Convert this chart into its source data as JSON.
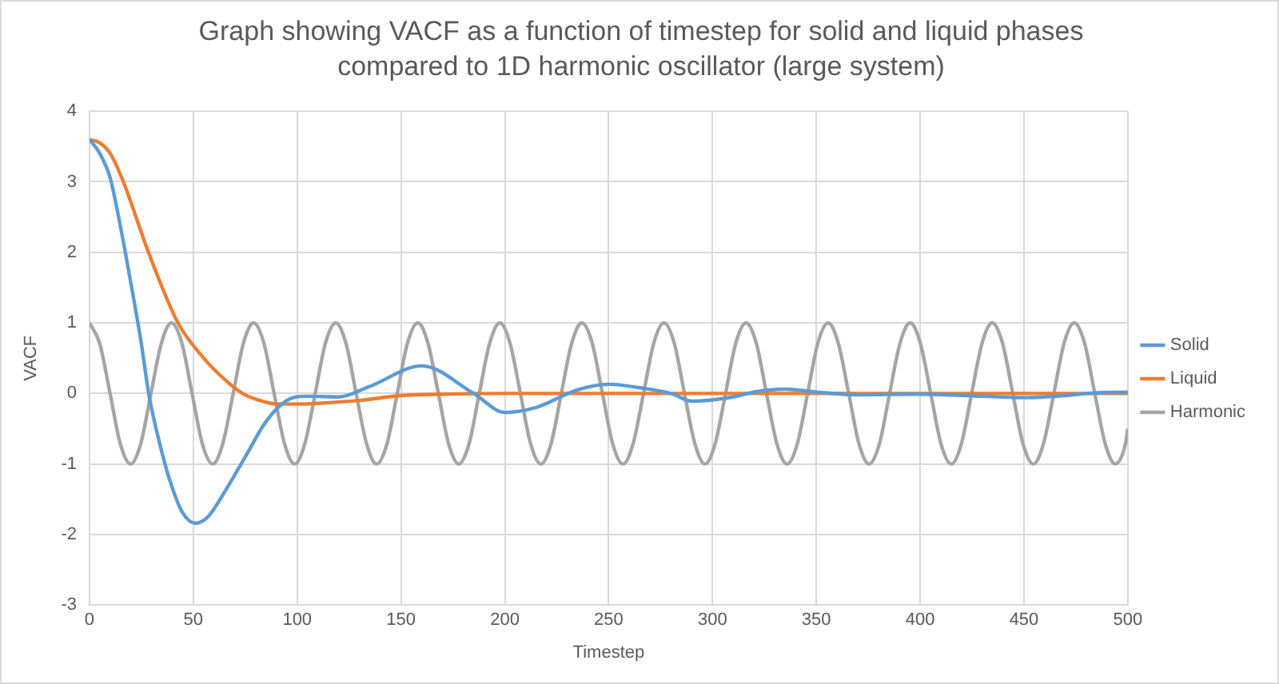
{
  "chart_data": {
    "type": "line",
    "title": "Graph showing VACF as a function of timestep for solid and liquid phases compared to 1D harmonic oscillator (large system)",
    "xlabel": "Timestep",
    "ylabel": "VACF",
    "xlim": [
      0,
      500
    ],
    "xticks": [
      0,
      50,
      100,
      150,
      200,
      250,
      300,
      350,
      400,
      450,
      500
    ],
    "ylim": [
      -3,
      4
    ],
    "yticks": [
      -3,
      -2,
      -1,
      0,
      1,
      2,
      3,
      4
    ],
    "grid": true,
    "legend": "right",
    "marker": "none",
    "line_style": "solid",
    "series": [
      {
        "name": "Solid",
        "color": "#5b9bd5",
        "x": [
          0,
          5,
          10,
          15,
          20,
          25,
          28.5,
          35,
          40,
          45,
          51,
          57,
          65,
          75,
          85,
          95,
          105,
          120,
          135,
          160,
          185,
          200,
          215,
          235,
          250,
          265,
          280,
          290,
          310,
          320,
          335,
          350,
          370,
          400,
          430,
          450,
          470,
          480,
          500
        ],
        "values": [
          3.6,
          3.4,
          3.05,
          2.35,
          1.55,
          0.7,
          0,
          -0.85,
          -1.35,
          -1.7,
          -1.84,
          -1.75,
          -1.4,
          -0.9,
          -0.4,
          -0.1,
          -0.04,
          -0.05,
          0.1,
          0.39,
          0,
          -0.27,
          -0.2,
          0.05,
          0.13,
          0.08,
          0,
          -0.11,
          -0.05,
          0.02,
          0.06,
          0.02,
          -0.02,
          -0.01,
          -0.04,
          -0.06,
          -0.03,
          0,
          0.02
        ]
      },
      {
        "name": "Liquid",
        "color": "#ed7d31",
        "x": [
          0,
          5,
          10,
          16.3,
          28.4,
          42.6,
          55,
          65,
          73.7,
          82,
          90,
          100,
          110,
          130,
          150,
          170,
          200,
          300,
          400,
          500
        ],
        "values": [
          3.6,
          3.55,
          3.4,
          3,
          2,
          1,
          0.5,
          0.2,
          0,
          -0.1,
          -0.15,
          -0.15,
          -0.14,
          -0.1,
          -0.03,
          -0.01,
          0,
          0,
          0,
          0
        ]
      },
      {
        "name": "Harmonic",
        "color": "#a5a5a5",
        "x": [
          0,
          4.9,
          9.9,
          14.8,
          19.8,
          24.7,
          29.6,
          34.6,
          39.5,
          44.5,
          49.4,
          54.3,
          59.3,
          64.2,
          69.2,
          74.1,
          79,
          84,
          88.9,
          93.9,
          98.8,
          103.7,
          108.7,
          113.6,
          118.6,
          123.5,
          128.4,
          133.4,
          138.3,
          143.3,
          148.2,
          153.1,
          158.1,
          163,
          168,
          172.9,
          177.8,
          182.8,
          187.7,
          192.7,
          197.6,
          202.5,
          207.5,
          212.4,
          217.4,
          222.3,
          227.2,
          232.2,
          237.1,
          242.1,
          247,
          251.9,
          256.9,
          261.8,
          266.8,
          271.7,
          276.6,
          281.6,
          286.5,
          291.5,
          296.4,
          301.3,
          306.3,
          311.2,
          316.2,
          321.1,
          326,
          331,
          335.9,
          340.9,
          345.8,
          350.7,
          355.7,
          360.6,
          365.6,
          370.5,
          375.4,
          380.4,
          385.3,
          390.3,
          395.2,
          400.1,
          405.1,
          410,
          415,
          419.9,
          424.8,
          429.8,
          434.7,
          439.7,
          444.6,
          449.5,
          454.5,
          459.4,
          464.4,
          469.3,
          474.2,
          479.2,
          484.1,
          489.1,
          494,
          498.9,
          500
        ],
        "values": [
          1,
          0.71,
          0,
          -0.71,
          -1,
          -0.71,
          0,
          0.71,
          1,
          0.71,
          0,
          -0.71,
          -1,
          -0.71,
          0,
          0.71,
          1,
          0.71,
          0,
          -0.71,
          -1,
          -0.71,
          0,
          0.71,
          1,
          0.71,
          0,
          -0.71,
          -1,
          -0.71,
          0,
          0.71,
          1,
          0.71,
          0,
          -0.71,
          -1,
          -0.71,
          0,
          0.71,
          1,
          0.71,
          0,
          -0.71,
          -1,
          -0.71,
          0,
          0.71,
          1,
          0.71,
          0,
          -0.71,
          -1,
          -0.71,
          0,
          0.71,
          1,
          0.71,
          0,
          -0.71,
          -1,
          -0.71,
          0,
          0.71,
          1,
          0.71,
          0,
          -0.71,
          -1,
          -0.71,
          0,
          0.71,
          1,
          0.71,
          0,
          -0.71,
          -1,
          -0.71,
          0,
          0.71,
          1,
          0.71,
          0,
          -0.71,
          -1,
          -0.71,
          0,
          0.71,
          1,
          0.71,
          0,
          -0.71,
          -1,
          -0.71,
          0,
          0.71,
          1,
          0.71,
          0,
          -0.71,
          -1,
          -0.71,
          -0.5
        ]
      }
    ]
  }
}
